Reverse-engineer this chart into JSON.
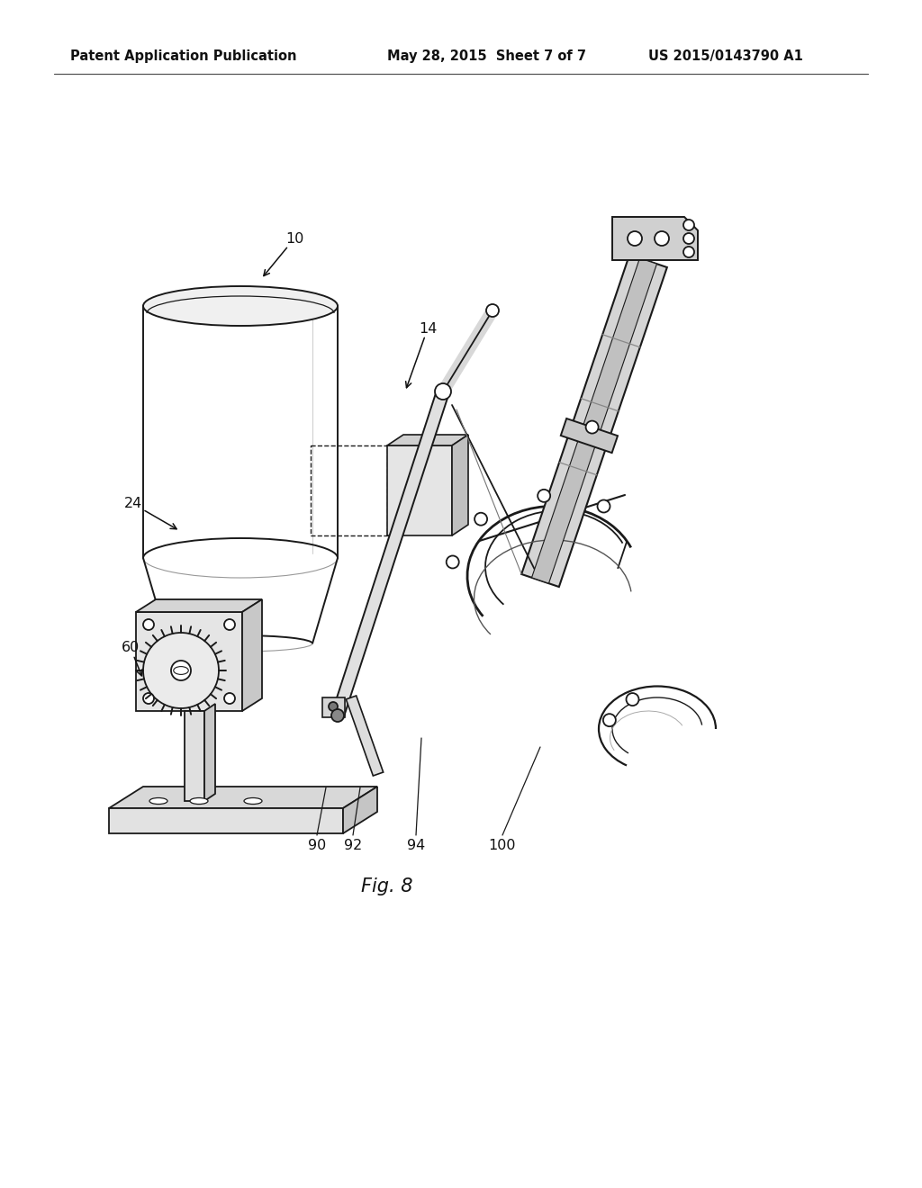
{
  "bg_color": "#ffffff",
  "line_color": "#1a1a1a",
  "gray_light": "#e8e8e8",
  "gray_mid": "#d0d0d0",
  "gray_dark": "#b8b8b8",
  "header_left": "Patent Application Publication",
  "header_center": "May 28, 2015  Sheet 7 of 7",
  "header_right": "US 2015/0143790 A1",
  "figure_label": "Fig. 8",
  "ref_fontsize": 11.5,
  "header_fontsize": 10.5,
  "fig_label_fontsize": 15
}
